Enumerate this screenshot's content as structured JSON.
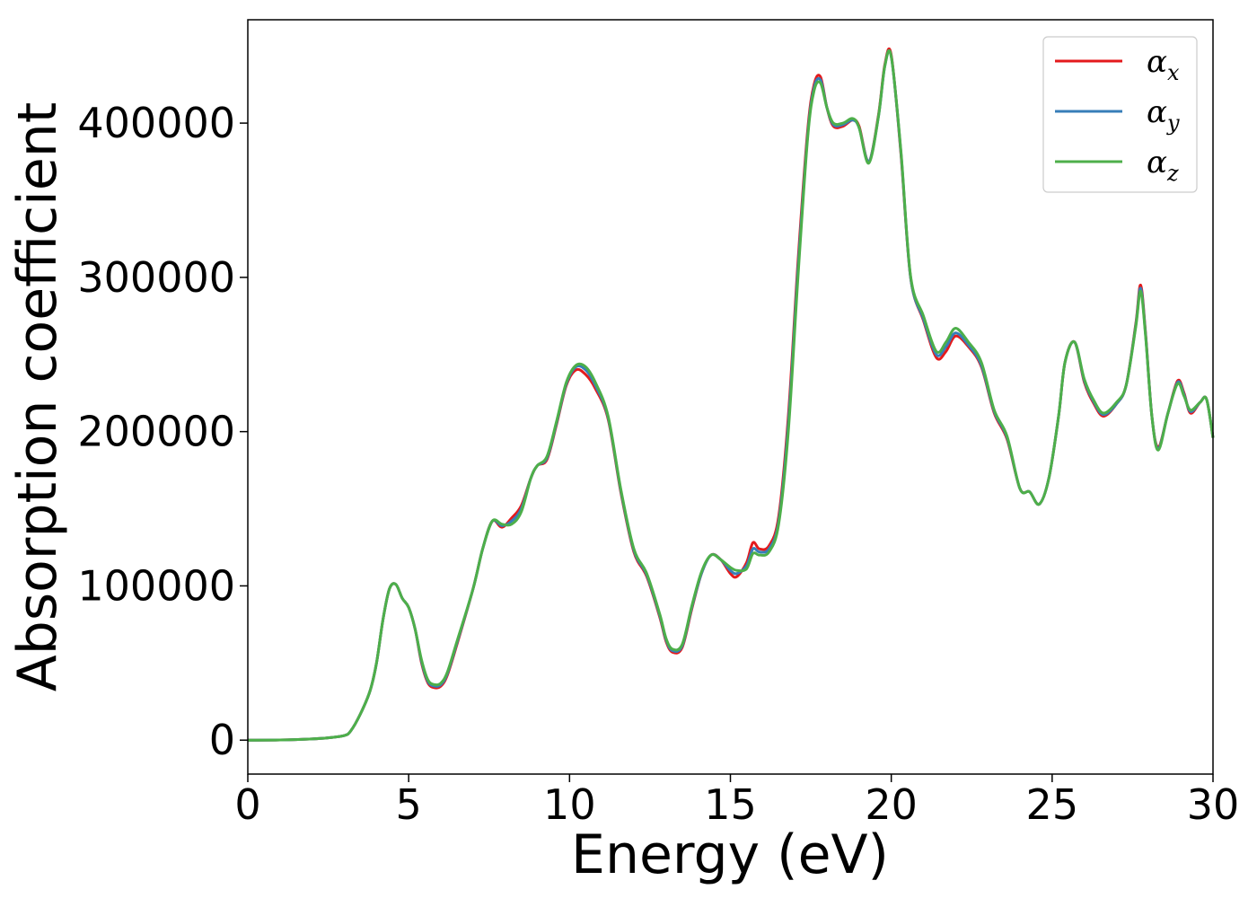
{
  "chart_data": {
    "type": "line",
    "xlabel": "Energy (eV)",
    "ylabel": "Absorption coefficient",
    "xlim": [
      0,
      30
    ],
    "ylim": [
      -22000,
      467000
    ],
    "xticks": [
      0,
      5,
      10,
      15,
      20,
      25,
      30
    ],
    "yticks": [
      0,
      100000,
      200000,
      300000,
      400000
    ],
    "grid": false,
    "legend_position": "top-right",
    "series": [
      {
        "name": "αx",
        "symbol": "α",
        "subscript": "x",
        "color": "#e41a1c",
        "x": [
          0,
          1,
          2,
          2.5,
          3,
          3.2,
          3.5,
          3.8,
          4.0,
          4.2,
          4.4,
          4.6,
          4.8,
          5.0,
          5.2,
          5.4,
          5.6,
          5.8,
          6.0,
          6.2,
          6.5,
          7.0,
          7.3,
          7.6,
          7.9,
          8.2,
          8.5,
          8.8,
          9.0,
          9.3,
          9.6,
          9.9,
          10.2,
          10.5,
          10.8,
          11.2,
          11.6,
          12.0,
          12.4,
          12.8,
          13.0,
          13.2,
          13.5,
          13.8,
          14.1,
          14.4,
          14.7,
          15.0,
          15.2,
          15.5,
          15.7,
          15.9,
          16.2,
          16.5,
          16.8,
          17.1,
          17.4,
          17.6,
          17.8,
          18.0,
          18.2,
          18.5,
          18.8,
          19.0,
          19.3,
          19.6,
          19.8,
          20.0,
          20.3,
          20.6,
          21.0,
          21.4,
          21.7,
          22.0,
          22.4,
          22.8,
          23.2,
          23.6,
          24.0,
          24.3,
          24.6,
          24.9,
          25.2,
          25.4,
          25.7,
          26.0,
          26.3,
          26.6,
          27.0,
          27.3,
          27.6,
          27.75,
          27.9,
          28.1,
          28.3,
          28.6,
          28.9,
          29.1,
          29.3,
          29.6,
          29.8,
          30.0
        ],
        "y": [
          0,
          100,
          800,
          1500,
          3000,
          6000,
          17000,
          32000,
          50000,
          78000,
          98000,
          101000,
          92000,
          86000,
          72000,
          50000,
          37000,
          34000,
          35000,
          42000,
          62000,
          98000,
          124000,
          142000,
          138000,
          144000,
          152000,
          170000,
          178000,
          182000,
          205000,
          230000,
          240000,
          237000,
          228000,
          208000,
          160000,
          122000,
          106000,
          80000,
          64000,
          57000,
          60000,
          85000,
          108000,
          120000,
          117000,
          108000,
          106000,
          115000,
          128000,
          124000,
          126000,
          145000,
          210000,
          310000,
          395000,
          425000,
          430000,
          410000,
          398000,
          398000,
          402000,
          398000,
          375000,
          405000,
          438000,
          444000,
          380000,
          300000,
          272000,
          248000,
          252000,
          262000,
          255000,
          242000,
          212000,
          195000,
          163000,
          161000,
          153000,
          170000,
          210000,
          245000,
          258000,
          232000,
          218000,
          210000,
          218000,
          230000,
          270000,
          295000,
          265000,
          210000,
          190000,
          212000,
          233000,
          225000,
          212000,
          219000,
          221000,
          196000
        ]
      },
      {
        "name": "αy",
        "symbol": "α",
        "subscript": "y",
        "color": "#377eb8",
        "x": [
          0,
          1,
          2,
          2.5,
          3,
          3.2,
          3.5,
          3.8,
          4.0,
          4.2,
          4.4,
          4.6,
          4.8,
          5.0,
          5.2,
          5.4,
          5.6,
          5.8,
          6.0,
          6.2,
          6.5,
          7.0,
          7.3,
          7.6,
          7.9,
          8.2,
          8.5,
          8.8,
          9.0,
          9.3,
          9.6,
          9.9,
          10.2,
          10.5,
          10.8,
          11.2,
          11.6,
          12.0,
          12.4,
          12.8,
          13.0,
          13.2,
          13.5,
          13.8,
          14.1,
          14.4,
          14.7,
          15.0,
          15.2,
          15.5,
          15.7,
          15.9,
          16.2,
          16.5,
          16.8,
          17.1,
          17.4,
          17.6,
          17.8,
          18.0,
          18.2,
          18.5,
          18.8,
          19.0,
          19.3,
          19.6,
          19.8,
          20.0,
          20.3,
          20.6,
          21.0,
          21.4,
          21.7,
          22.0,
          22.4,
          22.8,
          23.2,
          23.6,
          24.0,
          24.3,
          24.6,
          24.9,
          25.2,
          25.4,
          25.7,
          26.0,
          26.3,
          26.6,
          27.0,
          27.3,
          27.6,
          27.75,
          27.9,
          28.1,
          28.3,
          28.6,
          28.9,
          29.1,
          29.3,
          29.6,
          29.8,
          30.0
        ],
        "y": [
          0,
          100,
          800,
          1500,
          3000,
          6000,
          17000,
          32000,
          50000,
          78000,
          98000,
          101000,
          92000,
          86000,
          72000,
          51000,
          38000,
          35000,
          36000,
          43000,
          63000,
          98000,
          124000,
          142000,
          139000,
          142000,
          150000,
          170000,
          178000,
          183000,
          206000,
          231000,
          242000,
          240000,
          230000,
          209000,
          161000,
          123000,
          107000,
          81000,
          65000,
          58000,
          61000,
          86000,
          108000,
          120000,
          117000,
          110000,
          108000,
          113000,
          124000,
          122000,
          124000,
          142000,
          205000,
          305000,
          392000,
          423000,
          428000,
          410000,
          399000,
          399000,
          402000,
          397000,
          375000,
          404000,
          437000,
          443000,
          381000,
          300000,
          273000,
          250000,
          255000,
          264000,
          256000,
          243000,
          213000,
          196000,
          163000,
          161000,
          153000,
          170000,
          210000,
          245000,
          258000,
          233000,
          219000,
          211000,
          218000,
          230000,
          269000,
          293000,
          264000,
          210000,
          189000,
          212000,
          232000,
          224000,
          213000,
          219000,
          221000,
          196000
        ]
      },
      {
        "name": "αz",
        "symbol": "α",
        "subscript": "z",
        "color": "#4daf4a",
        "x": [
          0,
          1,
          2,
          2.5,
          3,
          3.2,
          3.5,
          3.8,
          4.0,
          4.2,
          4.4,
          4.6,
          4.8,
          5.0,
          5.2,
          5.4,
          5.6,
          5.8,
          6.0,
          6.2,
          6.5,
          7.0,
          7.3,
          7.6,
          7.9,
          8.2,
          8.5,
          8.8,
          9.0,
          9.3,
          9.6,
          9.9,
          10.2,
          10.5,
          10.8,
          11.2,
          11.6,
          12.0,
          12.4,
          12.8,
          13.0,
          13.2,
          13.5,
          13.8,
          14.1,
          14.4,
          14.7,
          15.0,
          15.2,
          15.5,
          15.7,
          15.9,
          16.2,
          16.5,
          16.8,
          17.1,
          17.4,
          17.6,
          17.8,
          18.0,
          18.2,
          18.5,
          18.8,
          19.0,
          19.3,
          19.6,
          19.8,
          20.0,
          20.3,
          20.6,
          21.0,
          21.4,
          21.7,
          22.0,
          22.4,
          22.8,
          23.2,
          23.6,
          24.0,
          24.3,
          24.6,
          24.9,
          25.2,
          25.4,
          25.7,
          26.0,
          26.3,
          26.6,
          27.0,
          27.3,
          27.6,
          27.75,
          27.9,
          28.1,
          28.3,
          28.6,
          28.9,
          29.1,
          29.3,
          29.6,
          29.8,
          30.0
        ],
        "y": [
          0,
          100,
          800,
          1500,
          3000,
          6000,
          17000,
          32000,
          50000,
          78000,
          98000,
          101000,
          92000,
          86000,
          72000,
          52000,
          39000,
          36000,
          37000,
          44000,
          64000,
          98000,
          124000,
          142000,
          140000,
          140000,
          148000,
          170000,
          178000,
          184000,
          207000,
          232000,
          243000,
          242000,
          232000,
          210000,
          162000,
          124000,
          108000,
          82000,
          66000,
          59000,
          62000,
          87000,
          109000,
          120000,
          117000,
          112000,
          110000,
          111000,
          121000,
          120000,
          122000,
          140000,
          200000,
          300000,
          390000,
          421000,
          426000,
          410000,
          400000,
          400000,
          403000,
          397000,
          374000,
          404000,
          437000,
          443000,
          382000,
          301000,
          275000,
          252000,
          258000,
          267000,
          258000,
          245000,
          214000,
          197000,
          163000,
          161000,
          153000,
          170000,
          210000,
          245000,
          258000,
          234000,
          220000,
          212000,
          219000,
          230000,
          268000,
          291000,
          263000,
          210000,
          188000,
          212000,
          231000,
          223000,
          214000,
          219000,
          221000,
          196000
        ]
      }
    ]
  }
}
